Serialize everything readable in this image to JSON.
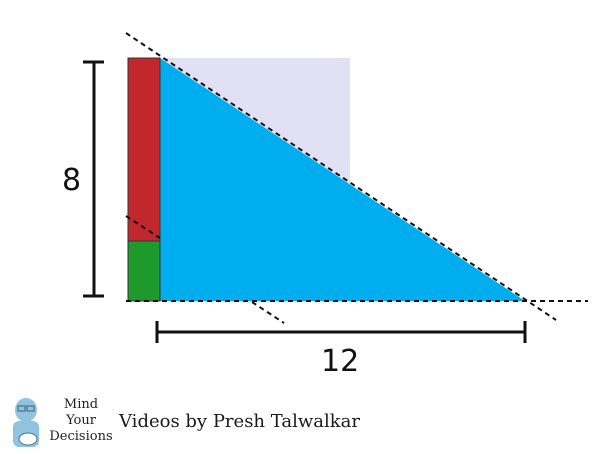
{
  "diagram": {
    "vertical_dimension": "8",
    "horizontal_dimension": "12",
    "colors": {
      "triangle": "#00aeef",
      "square_background": "#e1e1f3",
      "red_rect": "#c1272d",
      "green_rect": "#1e9a2c",
      "lines": "#111111"
    }
  },
  "branding": {
    "logo_line1": "Mind",
    "logo_line2": "Your",
    "logo_line3": "Decisions",
    "logo_icon": "thinking-person-icon",
    "byline": "Videos by Presh Talwalkar"
  }
}
